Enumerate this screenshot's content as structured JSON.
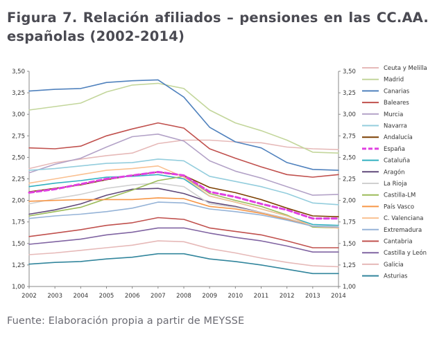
{
  "figure": {
    "title": "Figura 7. Relación afiliados – pensiones en las CC.AA. españolas (2002-2014)",
    "source": "Fuente: Elaboración propia a partir de MEYSSE"
  },
  "chart_data": {
    "type": "line",
    "title": "",
    "xlabel": "",
    "ylabel": "",
    "x": [
      2002,
      2003,
      2004,
      2005,
      2006,
      2007,
      2008,
      2009,
      2010,
      2011,
      2012,
      2013,
      2014
    ],
    "x_tick_labels": [
      "2002",
      "2003",
      "2004",
      "2005",
      "2006",
      "2007",
      "2008",
      "2009",
      "2010",
      "2011",
      "2012",
      "2013",
      "2014"
    ],
    "ylim": [
      1.0,
      3.5
    ],
    "y_ticks": [
      1.0,
      1.25,
      1.5,
      1.75,
      2.0,
      2.25,
      2.5,
      2.75,
      3.0,
      3.25,
      3.5
    ],
    "y_tick_labels": [
      "1,00",
      "1,25",
      "1,50",
      "1,75",
      "2,00",
      "2,25",
      "2,50",
      "2,75",
      "3,00",
      "3,25",
      "3,50"
    ],
    "y_axis_both_sides": true,
    "grid": false,
    "legend_position": "right",
    "series": [
      {
        "name": "Ceuta y Melilla",
        "color": "#e6b9b8",
        "dashed": false,
        "values": [
          2.37,
          2.44,
          2.48,
          2.52,
          2.55,
          2.66,
          2.7,
          2.7,
          2.68,
          2.67,
          2.62,
          2.6,
          2.59
        ]
      },
      {
        "name": "Madrid",
        "color": "#c3d69b",
        "dashed": false,
        "values": [
          3.05,
          3.09,
          3.13,
          3.26,
          3.34,
          3.36,
          3.3,
          3.05,
          2.9,
          2.81,
          2.7,
          2.56,
          2.55
        ]
      },
      {
        "name": "Canarias",
        "color": "#4f81bd",
        "dashed": false,
        "values": [
          3.27,
          3.29,
          3.3,
          3.37,
          3.39,
          3.4,
          3.2,
          2.85,
          2.68,
          2.61,
          2.44,
          2.36,
          2.35
        ]
      },
      {
        "name": "Baleares",
        "color": "#c0504d",
        "dashed": false,
        "values": [
          2.61,
          2.6,
          2.63,
          2.75,
          2.83,
          2.9,
          2.84,
          2.6,
          2.49,
          2.39,
          2.3,
          2.27,
          2.3
        ]
      },
      {
        "name": "Murcia",
        "color": "#b3a2c7",
        "dashed": false,
        "values": [
          2.32,
          2.42,
          2.49,
          2.62,
          2.74,
          2.77,
          2.69,
          2.46,
          2.34,
          2.26,
          2.16,
          2.06,
          2.07
        ]
      },
      {
        "name": "Navarra",
        "color": "#93cddd",
        "dashed": false,
        "values": [
          2.35,
          2.37,
          2.4,
          2.43,
          2.44,
          2.48,
          2.46,
          2.28,
          2.22,
          2.16,
          2.08,
          1.97,
          1.95
        ]
      },
      {
        "name": "Andalucía",
        "color": "#7b3f00",
        "dashed": false,
        "values": [
          2.1,
          2.14,
          2.18,
          2.24,
          2.29,
          2.33,
          2.29,
          2.15,
          2.09,
          2.01,
          1.91,
          1.82,
          1.81
        ]
      },
      {
        "name": "España",
        "color": "#e040e0",
        "dashed": true,
        "values": [
          2.09,
          2.13,
          2.19,
          2.25,
          2.29,
          2.33,
          2.29,
          2.1,
          2.04,
          1.96,
          1.89,
          1.79,
          1.79
        ]
      },
      {
        "name": "Cataluña",
        "color": "#31b0c0",
        "dashed": false,
        "values": [
          2.16,
          2.2,
          2.23,
          2.27,
          2.28,
          2.3,
          2.25,
          2.05,
          1.98,
          1.9,
          1.82,
          1.72,
          1.71
        ]
      },
      {
        "name": "Aragón",
        "color": "#60497a",
        "dashed": false,
        "values": [
          1.84,
          1.89,
          1.96,
          2.06,
          2.13,
          2.14,
          2.08,
          1.98,
          1.93,
          1.86,
          1.79,
          1.7,
          1.69
        ]
      },
      {
        "name": "La Rioja",
        "color": "#d0d0d0",
        "dashed": false,
        "values": [
          1.96,
          2.02,
          2.07,
          2.14,
          2.18,
          2.2,
          2.16,
          1.96,
          1.92,
          1.86,
          1.79,
          1.7,
          1.7
        ]
      },
      {
        "name": "Castilla-LM",
        "color": "#9bbb59",
        "dashed": false,
        "values": [
          1.82,
          1.87,
          1.92,
          2.02,
          2.12,
          2.23,
          2.28,
          2.08,
          2.0,
          1.93,
          1.83,
          1.69,
          1.68
        ]
      },
      {
        "name": "País Vasco",
        "color": "#f79646",
        "dashed": false,
        "values": [
          1.99,
          2.0,
          2.01,
          2.01,
          2.01,
          2.03,
          2.02,
          1.93,
          1.9,
          1.85,
          1.78,
          1.7,
          1.68
        ]
      },
      {
        "name": "C. Valenciana",
        "color": "#fac090",
        "dashed": false,
        "values": [
          2.2,
          2.25,
          2.3,
          2.35,
          2.37,
          2.4,
          2.27,
          2.05,
          1.98,
          1.9,
          1.82,
          1.7,
          1.68
        ]
      },
      {
        "name": "Extremadura",
        "color": "#95b3d7",
        "dashed": false,
        "values": [
          1.79,
          1.82,
          1.84,
          1.87,
          1.91,
          1.98,
          1.97,
          1.9,
          1.87,
          1.83,
          1.77,
          1.7,
          1.69
        ]
      },
      {
        "name": "Cantabria",
        "color": "#c0504d",
        "dashed": false,
        "values": [
          1.58,
          1.62,
          1.66,
          1.71,
          1.74,
          1.8,
          1.78,
          1.68,
          1.64,
          1.6,
          1.53,
          1.45,
          1.45
        ]
      },
      {
        "name": "Castilla y León",
        "color": "#8064a2",
        "dashed": false,
        "values": [
          1.49,
          1.52,
          1.55,
          1.6,
          1.63,
          1.68,
          1.68,
          1.62,
          1.57,
          1.53,
          1.47,
          1.4,
          1.4
        ]
      },
      {
        "name": "Galicia",
        "color": "#e6b9b8",
        "dashed": false,
        "values": [
          1.37,
          1.39,
          1.42,
          1.45,
          1.48,
          1.53,
          1.52,
          1.44,
          1.39,
          1.33,
          1.28,
          1.24,
          1.23
        ]
      },
      {
        "name": "Asturias",
        "color": "#31859c",
        "dashed": false,
        "values": [
          1.26,
          1.28,
          1.29,
          1.32,
          1.34,
          1.38,
          1.38,
          1.32,
          1.29,
          1.25,
          1.2,
          1.15,
          1.15
        ]
      }
    ]
  }
}
